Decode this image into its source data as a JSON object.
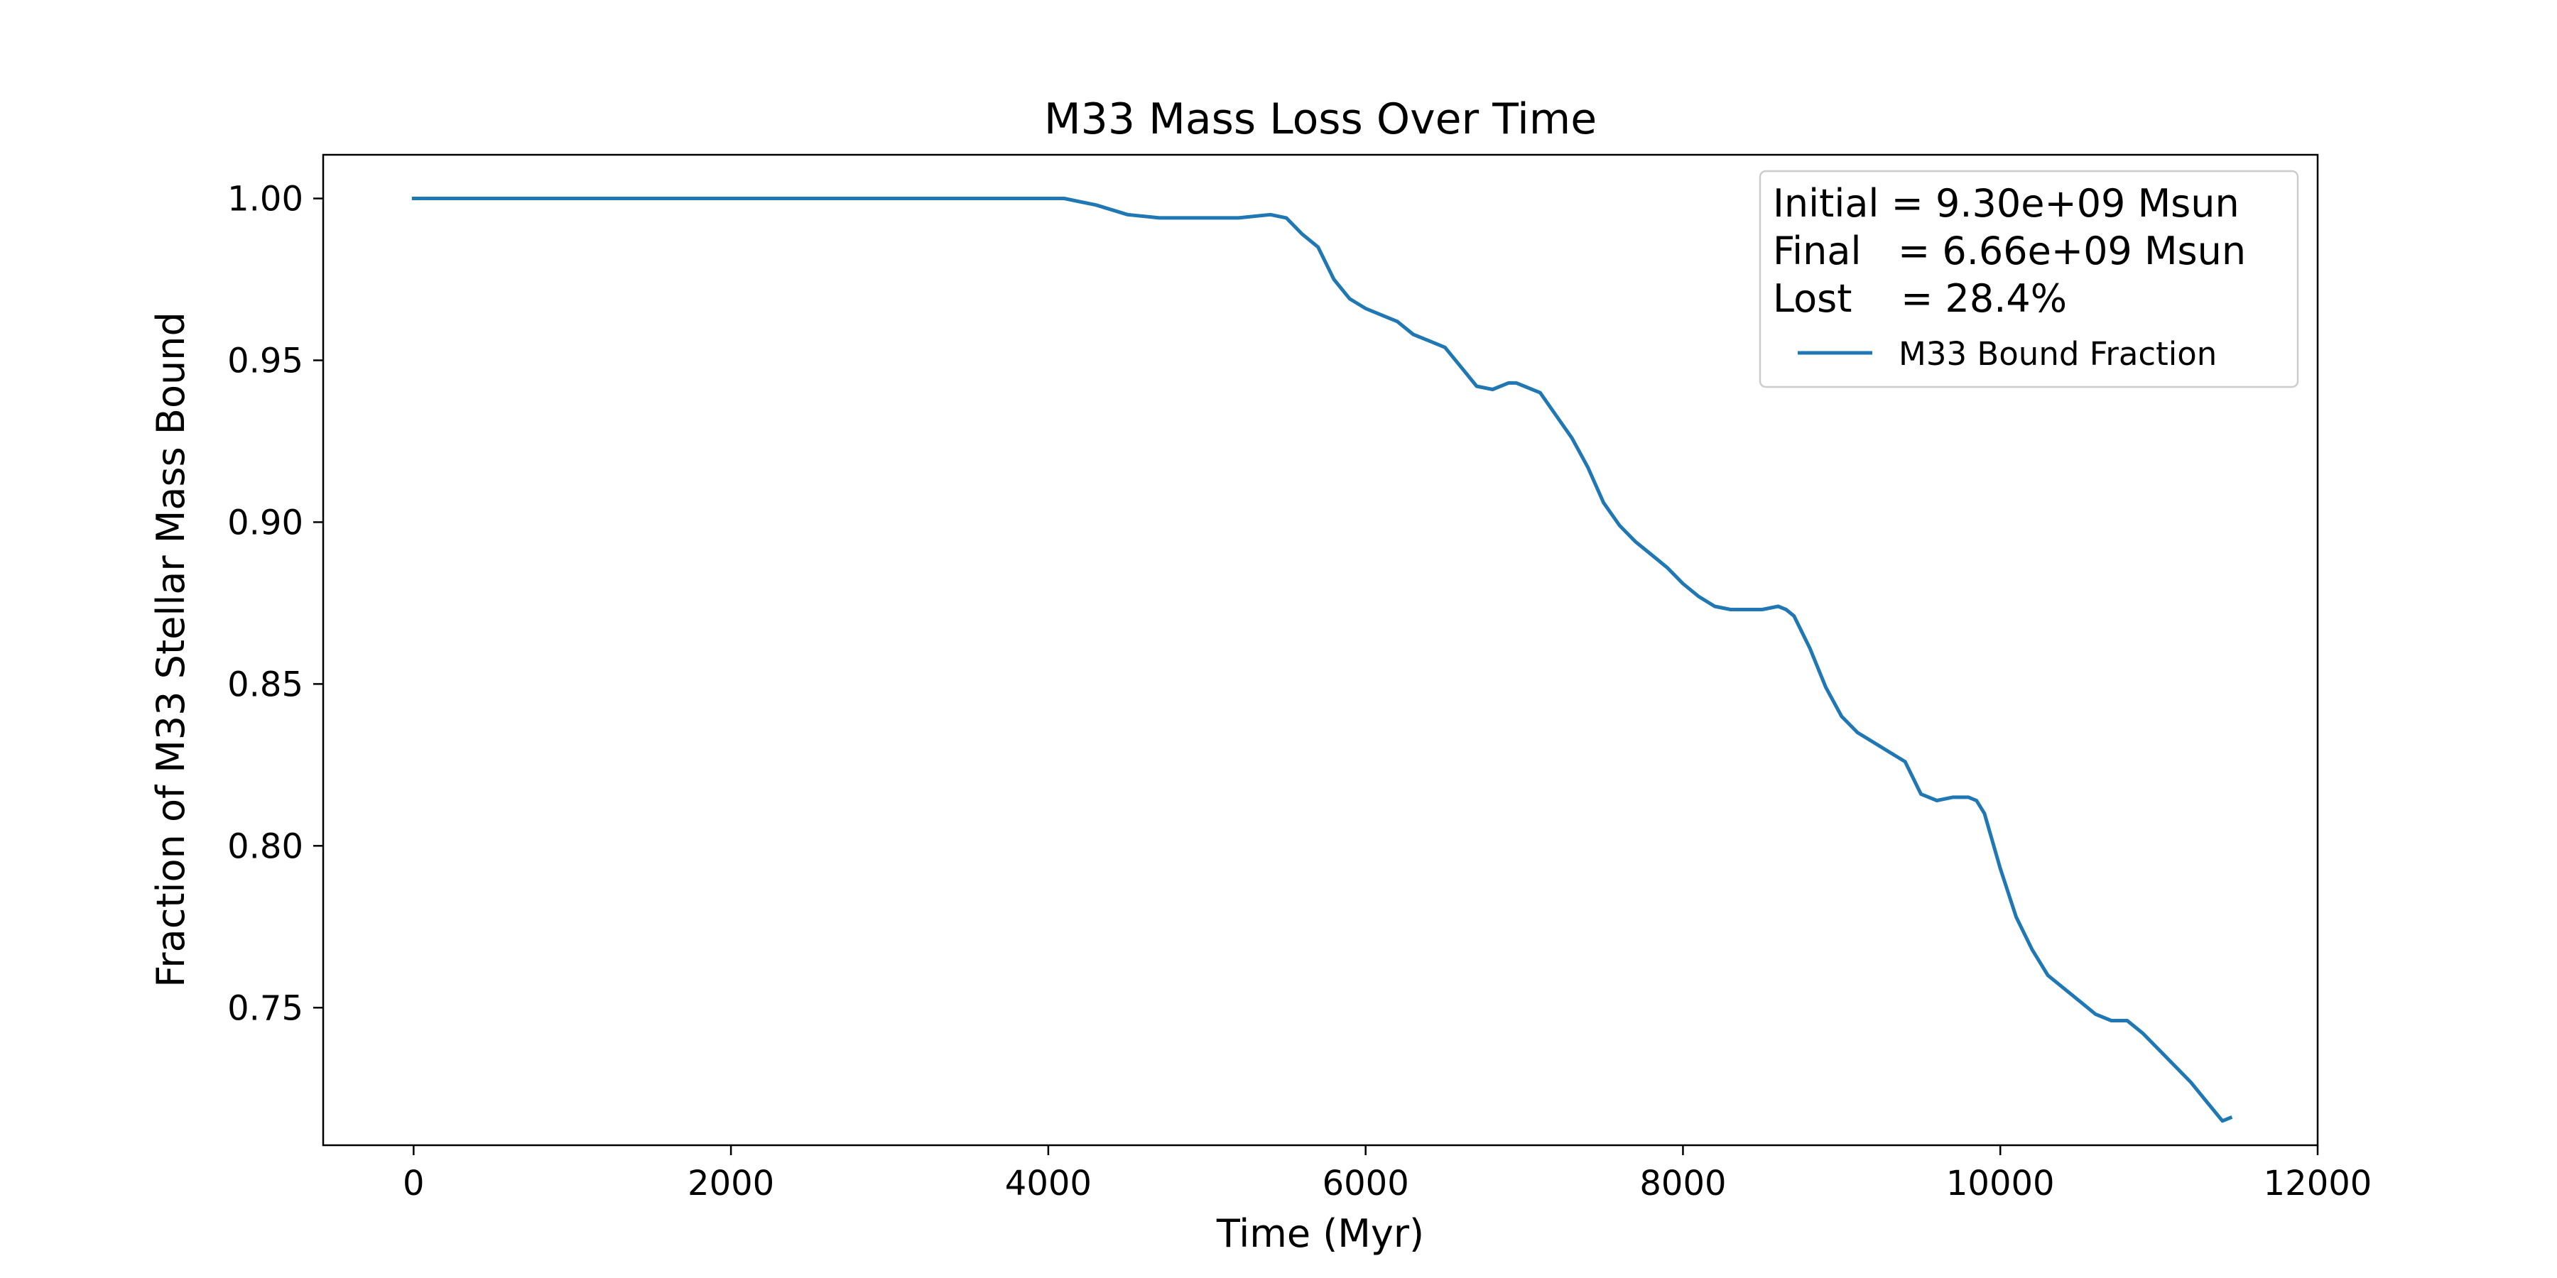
{
  "chart_data": {
    "type": "line",
    "title": "M33 Mass Loss Over Time",
    "xlabel": "Time (Myr)",
    "ylabel": "Fraction of M33 Stellar Mass Bound",
    "xlim": [
      -570,
      12000
    ],
    "ylim": [
      0.7075,
      1.0135
    ],
    "xticks": [
      0,
      2000,
      4000,
      6000,
      8000,
      10000,
      12000
    ],
    "xtick_labels": [
      "0",
      "2000",
      "4000",
      "6000",
      "8000",
      "10000",
      "12000"
    ],
    "yticks": [
      0.75,
      0.8,
      0.85,
      0.9,
      0.95,
      1.0
    ],
    "ytick_labels": [
      "0.75",
      "0.80",
      "0.85",
      "0.90",
      "0.95",
      "1.00"
    ],
    "grid": false,
    "legend_position": "upper right",
    "annotations": [
      "Initial = 9.30e+09 Msun",
      "Final   = 6.66e+09 Msun",
      "Lost    = 28.4%"
    ],
    "series": [
      {
        "name": "M33 Bound Fraction",
        "color": "#1f77b4",
        "x": [
          0,
          1000,
          2000,
          3000,
          4000,
          4100,
          4300,
          4500,
          4700,
          4900,
          5000,
          5200,
          5400,
          5500,
          5600,
          5700,
          5800,
          5900,
          6000,
          6100,
          6200,
          6300,
          6400,
          6500,
          6600,
          6700,
          6800,
          6900,
          6950,
          7000,
          7100,
          7200,
          7300,
          7400,
          7500,
          7600,
          7700,
          7800,
          7900,
          8000,
          8100,
          8200,
          8300,
          8400,
          8500,
          8600,
          8650,
          8700,
          8800,
          8900,
          9000,
          9100,
          9200,
          9300,
          9400,
          9500,
          9600,
          9700,
          9800,
          9850,
          9900,
          10000,
          10100,
          10200,
          10300,
          10400,
          10500,
          10600,
          10700,
          10800,
          10900,
          11000,
          11100,
          11200,
          11300,
          11400,
          11450
        ],
        "y": [
          1.0,
          1.0,
          1.0,
          1.0,
          1.0,
          1.0,
          0.998,
          0.995,
          0.994,
          0.994,
          0.994,
          0.994,
          0.995,
          0.994,
          0.989,
          0.985,
          0.975,
          0.969,
          0.966,
          0.964,
          0.962,
          0.958,
          0.956,
          0.954,
          0.948,
          0.942,
          0.941,
          0.943,
          0.943,
          0.942,
          0.94,
          0.933,
          0.926,
          0.917,
          0.906,
          0.899,
          0.894,
          0.89,
          0.886,
          0.881,
          0.877,
          0.874,
          0.873,
          0.873,
          0.873,
          0.874,
          0.873,
          0.871,
          0.861,
          0.849,
          0.84,
          0.835,
          0.832,
          0.829,
          0.826,
          0.816,
          0.814,
          0.815,
          0.815,
          0.814,
          0.81,
          0.793,
          0.778,
          0.768,
          0.76,
          0.756,
          0.752,
          0.748,
          0.746,
          0.746,
          0.742,
          0.737,
          0.732,
          0.727,
          0.721,
          0.715,
          0.716
        ]
      }
    ]
  }
}
